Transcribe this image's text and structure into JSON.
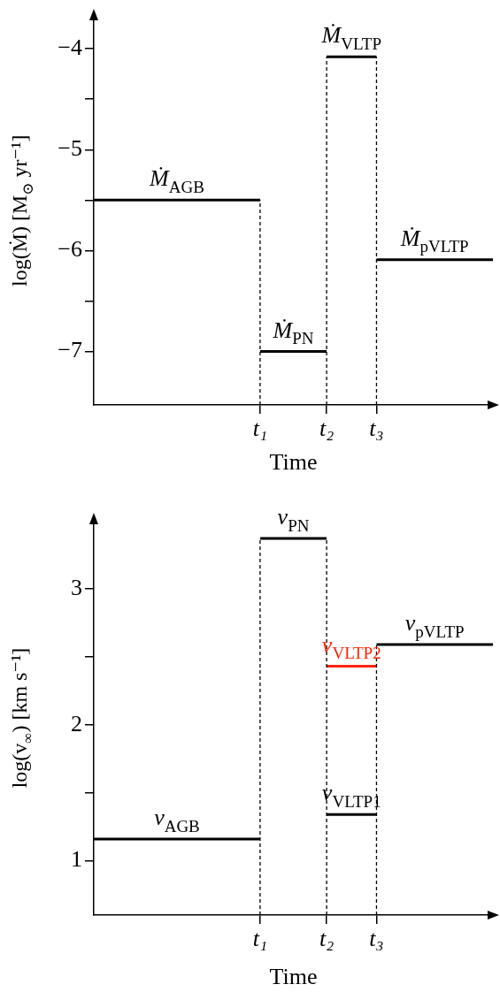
{
  "chart_data": [
    {
      "type": "line",
      "xlabel": "Time",
      "ylabel": "log(Ṁ) [M$_{⊙}$ yr⁻¹]",
      "categories": [
        null,
        null,
        null,
        null,
        null,
        null,
        null,
        null,
        null,
        null,
        "t₁",
        null,
        null,
        null,
        "t₂",
        null,
        null,
        "t₃",
        null,
        null,
        null,
        null,
        null,
        null,
        null
      ],
      "ylim": [
        -7.53,
        -3.68
      ],
      "yticks": [
        {
          "value": -7,
          "label": "−7"
        },
        {
          "value": -6.5,
          "label": null
        },
        {
          "value": -6,
          "label": "−6"
        },
        {
          "value": -5.5,
          "label": null
        },
        {
          "value": -5,
          "label": "−5"
        },
        {
          "value": -4.5,
          "label": null
        },
        {
          "value": -4,
          "label": "−4"
        }
      ],
      "series": [
        {
          "name": "Ṁ$_{AGB}$",
          "color": "#000000",
          "values": [
            -5.5,
            -5.5,
            -5.5,
            -5.5,
            -5.5,
            -5.5,
            -5.5,
            -5.5,
            -5.5,
            -5.5,
            -5.5,
            null,
            null,
            null,
            null,
            null,
            null,
            null,
            null,
            null,
            null,
            null,
            null,
            null,
            null
          ]
        },
        {
          "name": "Ṁ$_{PN}$",
          "color": "#000000",
          "values": [
            null,
            null,
            null,
            null,
            null,
            null,
            null,
            null,
            null,
            null,
            -7.0,
            -7.0,
            -7.0,
            -7.0,
            -7.0,
            null,
            null,
            null,
            null,
            null,
            null,
            null,
            null,
            null,
            null
          ]
        },
        {
          "name": "Ṁ$_{VLTP}$",
          "color": "#000000",
          "values": [
            null,
            null,
            null,
            null,
            null,
            null,
            null,
            null,
            null,
            null,
            null,
            null,
            null,
            null,
            -4.08,
            -4.08,
            -4.08,
            -4.08,
            null,
            null,
            null,
            null,
            null,
            null,
            null
          ]
        },
        {
          "name": "Ṁ$_{pVLTP}$",
          "color": "#000000",
          "values": [
            null,
            null,
            null,
            null,
            null,
            null,
            null,
            null,
            null,
            null,
            null,
            null,
            null,
            null,
            null,
            null,
            null,
            -6.09,
            -6.09,
            -6.09,
            -6.09,
            -6.09,
            -6.09,
            -6.09,
            -6.09
          ]
        }
      ],
      "ref_lines": [
        {
          "axis": "x",
          "value": "t₁",
          "line_style": "dashed"
        },
        {
          "axis": "x",
          "value": "t₂",
          "line_style": "dashed"
        },
        {
          "axis": "x",
          "value": "t₃",
          "line_style": "dashed"
        }
      ]
    },
    {
      "type": "line",
      "xlabel": "Time",
      "ylabel": "log(v$_{∞}$) [km s⁻¹]",
      "categories": [
        null,
        null,
        null,
        null,
        null,
        null,
        null,
        null,
        null,
        null,
        "t₁",
        null,
        null,
        null,
        "t₂",
        null,
        null,
        "t₃",
        null,
        null,
        null,
        null,
        null,
        null,
        null
      ],
      "ylim": [
        0.6,
        3.5
      ],
      "yticks": [
        1,
        {
          "value": 1.5,
          "label": null
        },
        2,
        {
          "value": 2.5,
          "label": null
        },
        3
      ],
      "series": [
        {
          "name": "v$_{AGB}$",
          "color": "#000000",
          "values": [
            1.16,
            1.16,
            1.16,
            1.16,
            1.16,
            1.16,
            1.16,
            1.16,
            1.16,
            1.16,
            1.16,
            null,
            null,
            null,
            null,
            null,
            null,
            null,
            null,
            null,
            null,
            null,
            null,
            null,
            null
          ]
        },
        {
          "name": "v$_{PN}$",
          "color": "#000000",
          "values": [
            null,
            null,
            null,
            null,
            null,
            null,
            null,
            null,
            null,
            null,
            3.37,
            3.37,
            3.37,
            3.37,
            3.37,
            null,
            null,
            null,
            null,
            null,
            null,
            null,
            null,
            null,
            null
          ]
        },
        {
          "name": "v$_{VLTP1}$",
          "color": "#000000",
          "values": [
            null,
            null,
            null,
            null,
            null,
            null,
            null,
            null,
            null,
            null,
            null,
            null,
            null,
            null,
            1.34,
            1.34,
            1.34,
            1.34,
            null,
            null,
            null,
            null,
            null,
            null,
            null
          ]
        },
        {
          "name": "v$_{VLTP2}$",
          "color": "#ff2200",
          "values": [
            null,
            null,
            null,
            null,
            null,
            null,
            null,
            null,
            null,
            null,
            null,
            null,
            null,
            null,
            2.43,
            2.43,
            2.43,
            2.43,
            null,
            null,
            null,
            null,
            null,
            null,
            null
          ]
        },
        {
          "name": "v$_{pVLTP}$",
          "color": "#000000",
          "values": [
            null,
            null,
            null,
            null,
            null,
            null,
            null,
            null,
            null,
            null,
            null,
            null,
            null,
            null,
            null,
            null,
            null,
            2.59,
            2.59,
            2.59,
            2.59,
            2.59,
            2.59,
            2.59,
            2.59
          ]
        }
      ],
      "ref_lines": [
        {
          "axis": "x",
          "value": "t₁",
          "line_style": "dashed"
        },
        {
          "axis": "x",
          "value": "t₂",
          "line_style": "dashed"
        },
        {
          "axis": "x",
          "value": "t₃",
          "line_style": "dashed"
        }
      ]
    }
  ]
}
